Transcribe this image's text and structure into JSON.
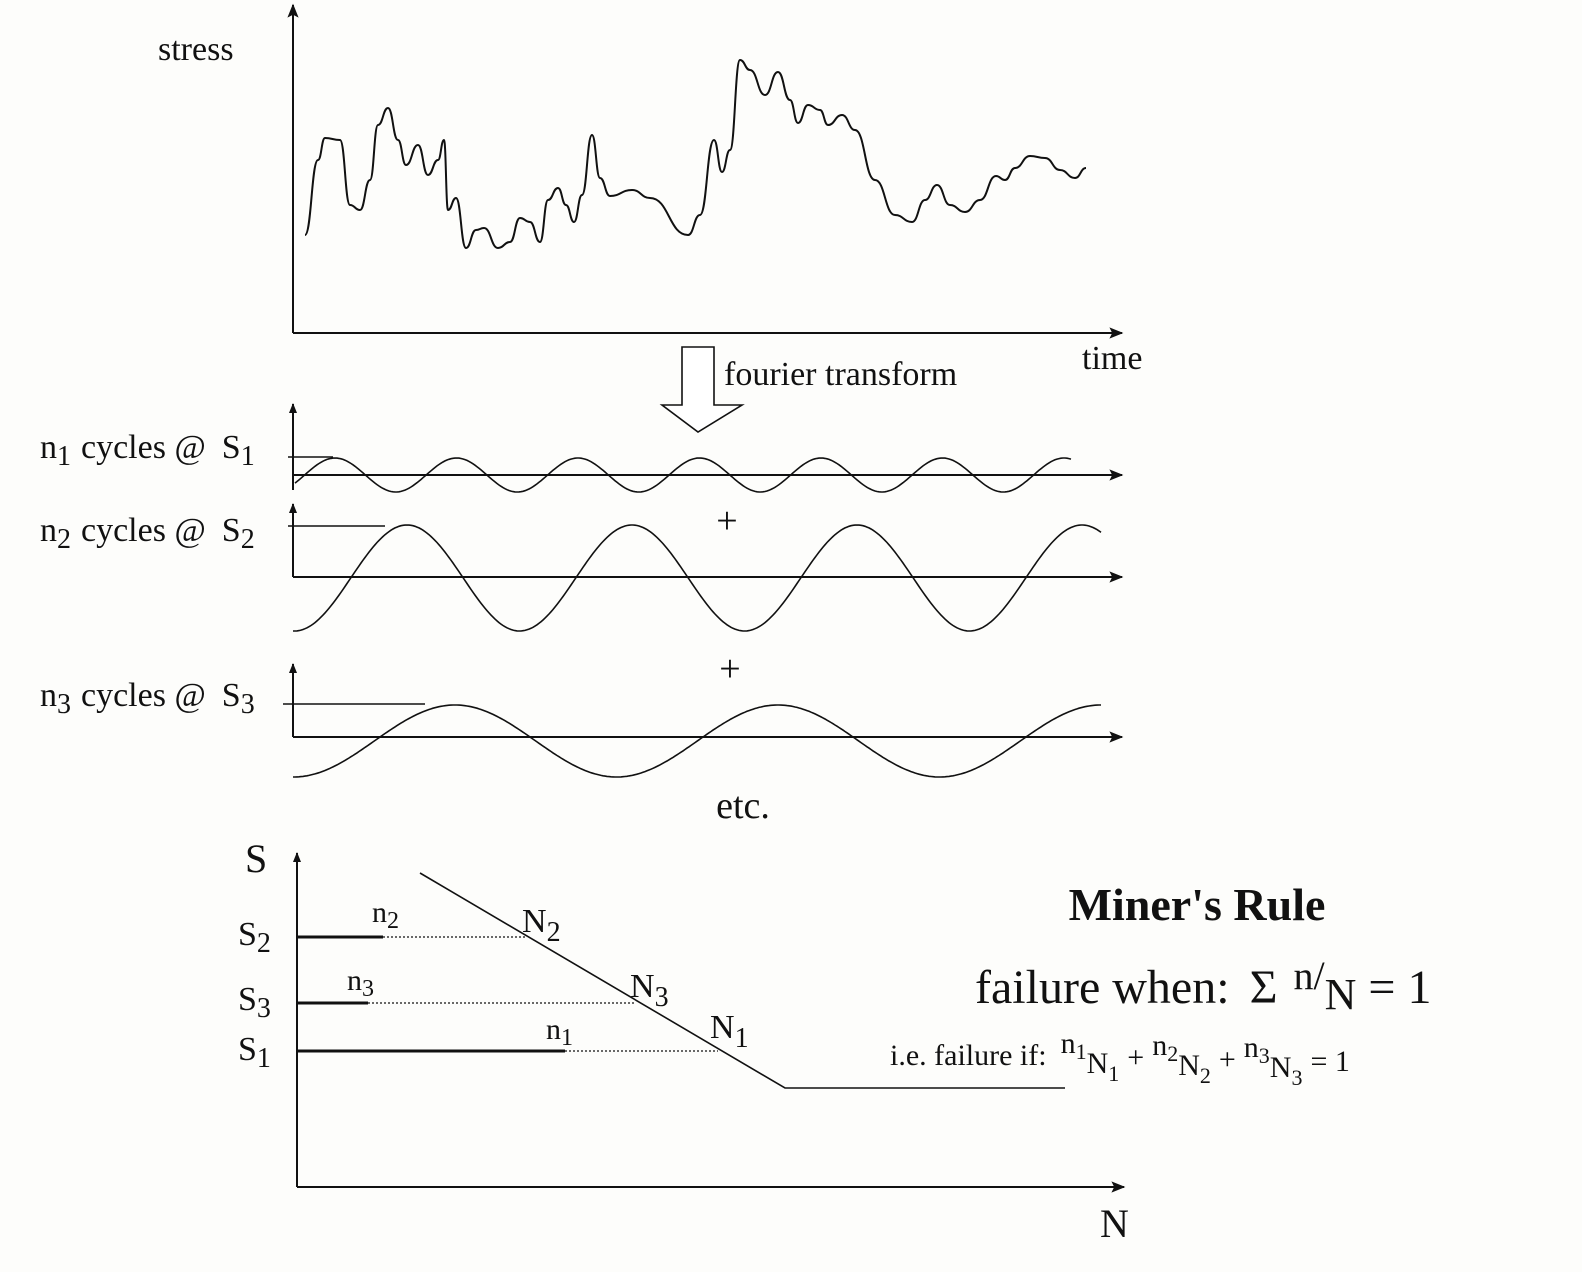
{
  "stress_plot": {
    "y_label": "stress",
    "x_label": "time"
  },
  "transform_label": "fourier transform",
  "components": [
    {
      "count": "n",
      "count_sub": "1",
      "text": "cycles @",
      "level": "S",
      "level_sub": "1"
    },
    {
      "count": "n",
      "count_sub": "2",
      "text": "cycles @",
      "level": "S",
      "level_sub": "2"
    },
    {
      "count": "n",
      "count_sub": "3",
      "text": "cycles @",
      "level": "S",
      "level_sub": "3"
    }
  ],
  "operators": [
    "+",
    "+"
  ],
  "continuation": "etc.",
  "sn_curve": {
    "y_label": "S",
    "x_label": "N",
    "levels": [
      {
        "stress": [
          "S",
          "2"
        ],
        "cycles": [
          "n",
          "2"
        ],
        "life": [
          "N",
          "2"
        ]
      },
      {
        "stress": [
          "S",
          "3"
        ],
        "cycles": [
          "n",
          "3"
        ],
        "life": [
          "N",
          "3"
        ]
      },
      {
        "stress": [
          "S",
          "1"
        ],
        "cycles": [
          "n",
          "1"
        ],
        "life": [
          "N",
          "1"
        ]
      }
    ]
  },
  "miners_rule": {
    "title": "Miner's Rule",
    "criterion": {
      "prefix": "failure when:",
      "sigma": "Σ",
      "num": "n",
      "slash": "/",
      "den": "N",
      "equals": "= 1"
    },
    "expanded": {
      "prefix": "i.e. failure if:",
      "terms": [
        {
          "num": [
            "n",
            "1"
          ],
          "den": [
            "N",
            "1"
          ]
        },
        {
          "num": [
            "n",
            "2"
          ],
          "den": [
            "N",
            "2"
          ]
        },
        {
          "num": [
            "n",
            "3"
          ],
          "den": [
            "N",
            "3"
          ]
        }
      ],
      "slash": "/",
      "plus": "+",
      "equals": "= 1"
    }
  }
}
